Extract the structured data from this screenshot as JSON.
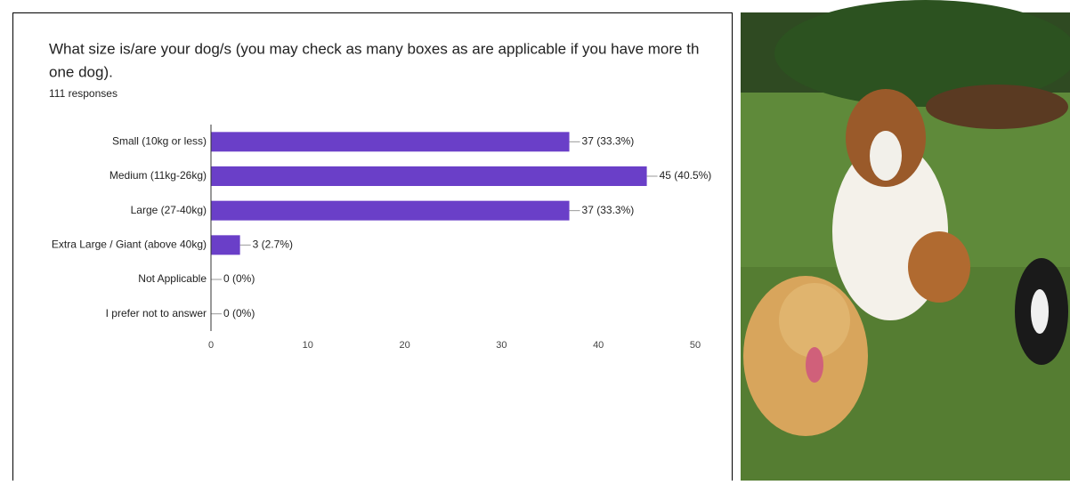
{
  "chart_data": {
    "type": "bar",
    "orientation": "horizontal",
    "title": [
      "What size is/are your dog/s (you may check as many boxes as are applicable if you have more th",
      "one dog)."
    ],
    "subtitle": "111 responses",
    "categories": [
      "Small (10kg or less)",
      "Medium (11kg-26kg)",
      "Large (27-40kg)",
      "Extra Large / Giant (above 40kg)",
      "Not Applicable",
      "I prefer not to answer"
    ],
    "values": [
      37,
      45,
      37,
      3,
      0,
      0
    ],
    "value_labels": [
      "37 (33.3%)",
      "45 (40.5%)",
      "37 (33.3%)",
      "3 (2.7%)",
      "0 (0%)",
      "0 (0%)"
    ],
    "color": "#6a3fc8",
    "xlim": [
      0,
      50
    ],
    "xticks": [
      0,
      10,
      20,
      30,
      40,
      50
    ],
    "grid": false
  }
}
